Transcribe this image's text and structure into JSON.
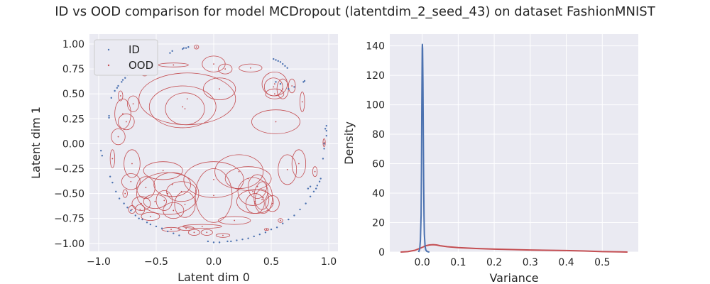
{
  "title": "ID vs OOD comparison for model MCDropout (latentdim_2_seed_43) on dataset FashionMNIST",
  "colors": {
    "id": "#4c72b0",
    "ood": "#c44e52",
    "plot_bg": "#eaeaf2",
    "grid": "#ffffff"
  },
  "chart_data": [
    {
      "type": "scatter",
      "xlabel": "Latent dim 0",
      "ylabel": "Latent dim 1",
      "xlim": [
        -1.08,
        1.08
      ],
      "ylim": [
        -1.08,
        1.1
      ],
      "xticks": [
        -1.0,
        -0.5,
        0.0,
        0.5,
        1.0
      ],
      "xtick_labels": [
        "−1.0",
        "−0.5",
        "0.0",
        "0.5",
        "1.0"
      ],
      "yticks": [
        -1.0,
        -0.75,
        -0.5,
        -0.25,
        0.0,
        0.25,
        0.5,
        0.75,
        1.0
      ],
      "ytick_labels": [
        "−1.00",
        "−0.75",
        "−0.50",
        "−0.25",
        "0.00",
        "0.25",
        "0.50",
        "0.75",
        "1.00"
      ],
      "grid": true,
      "legend": {
        "position": "top-left",
        "entries": [
          "ID",
          "OOD"
        ]
      },
      "series": [
        {
          "name": "ID",
          "points": [
            [
              -0.98,
              -0.07
            ],
            [
              -0.97,
              -0.12
            ],
            [
              -0.91,
              0.26
            ],
            [
              -0.91,
              0.28
            ],
            [
              -0.9,
              -0.33
            ],
            [
              -0.88,
              -0.39
            ],
            [
              -0.89,
              0.46
            ],
            [
              -0.86,
              0.53
            ],
            [
              -0.84,
              0.56
            ],
            [
              -0.83,
              0.58
            ],
            [
              -0.8,
              0.62
            ],
            [
              -0.79,
              0.64
            ],
            [
              -0.77,
              0.66
            ],
            [
              -0.75,
              0.69
            ],
            [
              -0.73,
              0.71
            ],
            [
              -0.71,
              0.73
            ],
            [
              -0.69,
              0.75
            ],
            [
              -0.85,
              -0.48
            ],
            [
              -0.82,
              -0.55
            ],
            [
              -0.78,
              -0.6
            ],
            [
              -0.75,
              -0.64
            ],
            [
              -0.72,
              -0.67
            ],
            [
              -0.68,
              -0.72
            ],
            [
              -0.65,
              -0.75
            ],
            [
              -0.62,
              -0.76
            ],
            [
              -0.58,
              -0.79
            ],
            [
              -0.55,
              -0.81
            ],
            [
              -0.5,
              -0.83
            ],
            [
              -0.45,
              -0.85
            ],
            [
              -0.4,
              -0.88
            ],
            [
              -0.35,
              -0.9
            ],
            [
              -0.3,
              -0.92
            ],
            [
              -0.38,
              0.91
            ],
            [
              -0.36,
              0.93
            ],
            [
              -0.27,
              0.95
            ],
            [
              -0.26,
              0.96
            ],
            [
              -0.24,
              0.96
            ],
            [
              -0.22,
              0.97
            ],
            [
              -0.05,
              -0.98
            ],
            [
              0.0,
              -0.99
            ],
            [
              0.05,
              -0.99
            ],
            [
              0.12,
              -0.98
            ],
            [
              0.15,
              -0.98
            ],
            [
              0.2,
              -0.97
            ],
            [
              0.25,
              -0.96
            ],
            [
              0.3,
              -0.95
            ],
            [
              0.35,
              -0.93
            ],
            [
              0.4,
              -0.91
            ],
            [
              0.45,
              -0.89
            ],
            [
              0.5,
              -0.86
            ],
            [
              0.55,
              -0.84
            ],
            [
              0.6,
              -0.8
            ],
            [
              0.65,
              -0.76
            ],
            [
              0.7,
              -0.72
            ],
            [
              0.75,
              -0.66
            ],
            [
              0.8,
              -0.6
            ],
            [
              0.84,
              -0.53
            ],
            [
              0.87,
              -0.48
            ],
            [
              0.89,
              -0.45
            ],
            [
              0.9,
              -0.42
            ],
            [
              0.92,
              -0.38
            ],
            [
              0.93,
              -0.35
            ],
            [
              0.95,
              -0.15
            ],
            [
              0.96,
              -0.05
            ],
            [
              0.96,
              0.0
            ],
            [
              0.98,
              0.08
            ],
            [
              0.98,
              0.13
            ],
            [
              0.97,
              0.15
            ],
            [
              0.98,
              0.18
            ],
            [
              0.52,
              0.85
            ],
            [
              0.54,
              0.84
            ],
            [
              0.56,
              0.83
            ],
            [
              0.58,
              0.82
            ],
            [
              0.6,
              0.8
            ],
            [
              0.62,
              0.78
            ],
            [
              0.64,
              0.76
            ],
            [
              0.7,
              0.57
            ],
            [
              0.65,
              0.55
            ],
            [
              0.78,
              0.62
            ],
            [
              0.79,
              0.63
            ],
            [
              0.54,
              0.62
            ],
            [
              0.58,
              0.6
            ],
            [
              0.84,
              -0.43
            ],
            [
              0.82,
              -0.45
            ]
          ]
        },
        {
          "name": "OOD",
          "ellipses": [
            [
              -0.23,
              0.45,
              0.42,
              0.26
            ],
            [
              -0.27,
              0.37,
              0.29,
              0.21
            ],
            [
              -0.25,
              0.35,
              0.17,
              0.16
            ],
            [
              0.0,
              0.8,
              0.1,
              0.08
            ],
            [
              0.1,
              0.75,
              0.06,
              0.05
            ],
            [
              0.05,
              0.55,
              0.14,
              0.11
            ],
            [
              0.32,
              0.76,
              0.1,
              0.04
            ],
            [
              0.52,
              0.57,
              0.08,
              0.09
            ],
            [
              0.53,
              0.6,
              0.11,
              0.12
            ],
            [
              0.53,
              0.5,
              0.08,
              0.05
            ],
            [
              0.6,
              0.55,
              0.05,
              0.1
            ],
            [
              0.68,
              0.58,
              0.03,
              0.07
            ],
            [
              0.77,
              0.42,
              0.02,
              0.1
            ],
            [
              0.54,
              0.22,
              0.21,
              0.12
            ],
            [
              -0.79,
              0.3,
              0.07,
              0.15
            ],
            [
              -0.76,
              0.22,
              0.07,
              0.08
            ],
            [
              -0.7,
              0.4,
              0.05,
              0.08
            ],
            [
              -0.81,
              0.48,
              0.02,
              0.05
            ],
            [
              -0.83,
              0.07,
              0.06,
              0.08
            ],
            [
              -0.58,
              0.82,
              0.05,
              0.03
            ],
            [
              -0.35,
              0.79,
              0.13,
              0.02
            ],
            [
              -0.15,
              0.97,
              0.02,
              0.02
            ],
            [
              -0.6,
              0.7,
              0.03,
              0.02
            ],
            [
              -0.71,
              -0.2,
              0.07,
              0.14
            ],
            [
              -0.72,
              -0.38,
              0.08,
              0.08
            ],
            [
              -0.59,
              -0.44,
              0.08,
              0.11
            ],
            [
              -0.44,
              -0.27,
              0.17,
              0.09
            ],
            [
              -0.4,
              -0.5,
              0.27,
              0.21
            ],
            [
              -0.36,
              -0.41,
              0.16,
              0.12
            ],
            [
              -0.28,
              -0.48,
              0.13,
              0.1
            ],
            [
              -0.25,
              -0.61,
              0.09,
              0.13
            ],
            [
              -0.35,
              -0.67,
              0.09,
              0.08
            ],
            [
              -0.43,
              -0.57,
              0.07,
              0.1
            ],
            [
              -0.51,
              -0.58,
              0.1,
              0.07
            ],
            [
              -0.63,
              -0.6,
              0.08,
              0.07
            ],
            [
              -0.64,
              -0.66,
              0.04,
              0.05
            ],
            [
              -0.71,
              -0.66,
              0.03,
              0.04
            ],
            [
              -0.77,
              -0.5,
              0.02,
              0.04
            ],
            [
              -0.55,
              -0.73,
              0.08,
              0.04
            ],
            [
              -0.37,
              -0.86,
              0.08,
              0.02
            ],
            [
              -0.24,
              -0.85,
              0.07,
              0.02
            ],
            [
              -0.17,
              -0.89,
              0.05,
              0.03
            ],
            [
              -0.06,
              -0.89,
              0.05,
              0.03
            ],
            [
              -0.1,
              -0.83,
              0.17,
              0.02
            ],
            [
              0.08,
              -0.92,
              0.06,
              0.02
            ],
            [
              0.18,
              -0.77,
              0.14,
              0.04
            ],
            [
              0.0,
              -0.36,
              0.26,
              0.18
            ],
            [
              0.0,
              -0.52,
              0.16,
              0.27
            ],
            [
              0.22,
              -0.28,
              0.21,
              0.17
            ],
            [
              0.3,
              -0.35,
              0.2,
              0.12
            ],
            [
              0.34,
              -0.48,
              0.13,
              0.14
            ],
            [
              0.38,
              -0.43,
              0.08,
              0.12
            ],
            [
              0.36,
              -0.6,
              0.08,
              0.1
            ],
            [
              0.36,
              -0.58,
              0.16,
              0.12
            ],
            [
              0.43,
              -0.54,
              0.08,
              0.16
            ],
            [
              0.42,
              -0.56,
              0.06,
              0.1
            ],
            [
              0.51,
              -0.6,
              0.06,
              0.08
            ],
            [
              0.64,
              -0.26,
              0.08,
              0.15
            ],
            [
              0.74,
              -0.2,
              0.06,
              0.14
            ],
            [
              0.88,
              -0.28,
              0.02,
              0.05
            ],
            [
              0.58,
              -0.77,
              0.02,
              0.02
            ],
            [
              0.46,
              -0.86,
              0.02,
              0.01
            ],
            [
              0.96,
              0.01,
              0.01,
              0.04
            ],
            [
              -0.88,
              -0.15,
              0.02,
              0.09
            ]
          ]
        }
      ]
    },
    {
      "type": "line",
      "xlabel": "Variance",
      "ylabel": "Density",
      "xlim": [
        -0.09,
        0.6
      ],
      "ylim": [
        0,
        148
      ],
      "xticks": [
        0.0,
        0.1,
        0.2,
        0.3,
        0.4,
        0.5
      ],
      "xtick_labels": [
        "0.0",
        "0.1",
        "0.2",
        "0.3",
        "0.4",
        "0.5"
      ],
      "yticks": [
        0,
        20,
        40,
        60,
        80,
        100,
        120,
        140
      ],
      "ytick_labels": [
        "0",
        "20",
        "40",
        "60",
        "80",
        "100",
        "120",
        "140"
      ],
      "grid": true,
      "series": [
        {
          "name": "ID",
          "x": [
            -0.01,
            -0.007,
            -0.005,
            -0.003,
            -0.002,
            -0.001,
            0.0,
            0.0005,
            0.001,
            0.002,
            0.003,
            0.004,
            0.005,
            0.006,
            0.008,
            0.01,
            0.013,
            0.016,
            0.02
          ],
          "y": [
            0,
            2,
            8,
            25,
            55,
            100,
            138,
            141,
            138,
            115,
            80,
            48,
            25,
            12,
            4,
            1.5,
            0.5,
            0.2,
            0
          ]
        },
        {
          "name": "OOD",
          "x": [
            -0.06,
            -0.04,
            -0.02,
            0.0,
            0.01,
            0.02,
            0.03,
            0.04,
            0.05,
            0.07,
            0.1,
            0.15,
            0.2,
            0.3,
            0.4,
            0.45,
            0.5,
            0.55,
            0.57
          ],
          "y": [
            0,
            0.3,
            1.2,
            3.2,
            4.3,
            4.8,
            5.0,
            4.8,
            4.3,
            3.6,
            3.0,
            2.4,
            2.0,
            1.4,
            1.0,
            0.7,
            0.3,
            0.08,
            0
          ]
        }
      ]
    }
  ]
}
